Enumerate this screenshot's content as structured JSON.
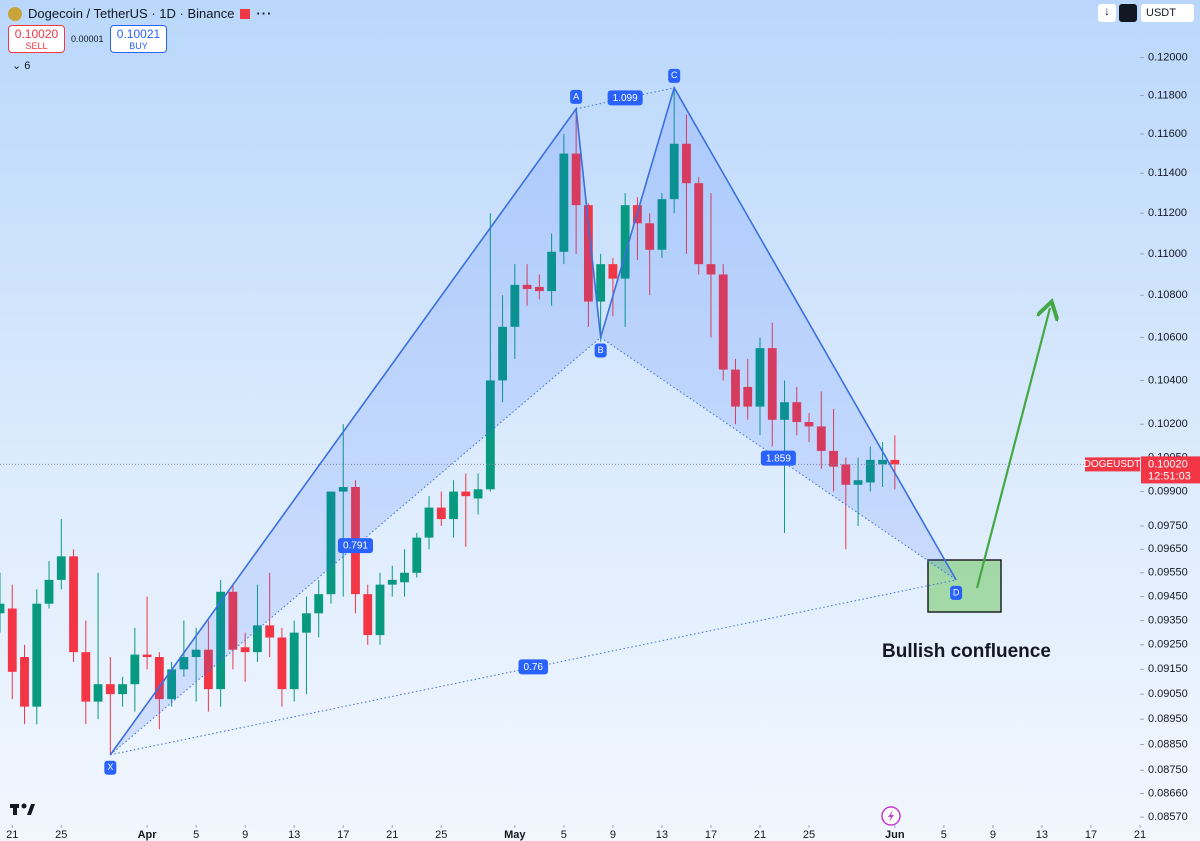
{
  "header": {
    "title": "Dogecoin / TetherUS · 1D · Binance",
    "sell_price": "0.10020",
    "sell": "SELL",
    "spread": "0.00001",
    "buy_price": "0.10021",
    "buy": "BUY",
    "indicators": "6",
    "currency": "USDT"
  },
  "chart_data": {
    "type": "candlestick",
    "log_scale": true,
    "colors": {
      "up": "#089981",
      "down": "#f23645",
      "pattern": "#3b6fe0"
    },
    "x": [
      "03-20",
      "03-21",
      "03-22",
      "03-23",
      "03-24",
      "03-25",
      "03-26",
      "03-27",
      "03-28",
      "03-29",
      "03-30",
      "03-31",
      "04-01",
      "04-02",
      "04-03",
      "04-04",
      "04-05",
      "04-06",
      "04-07",
      "04-08",
      "04-09",
      "04-10",
      "04-11",
      "04-12",
      "04-13",
      "04-14",
      "04-15",
      "04-16",
      "04-17",
      "04-18",
      "04-19",
      "04-20",
      "04-21",
      "04-22",
      "04-23",
      "04-24",
      "04-25",
      "04-26",
      "04-27",
      "04-28",
      "04-29",
      "04-30",
      "05-01",
      "05-02",
      "05-03",
      "05-04",
      "05-05",
      "05-06",
      "05-07",
      "05-08",
      "05-09",
      "05-10",
      "05-11",
      "05-12",
      "05-13",
      "05-14",
      "05-15",
      "05-16",
      "05-17",
      "05-18",
      "05-19",
      "05-20",
      "05-21",
      "05-22",
      "05-23",
      "05-24",
      "05-25",
      "05-26",
      "05-27",
      "05-28",
      "05-29",
      "05-30",
      "05-31",
      "06-01"
    ],
    "open": [
      0.0938,
      0.094,
      0.092,
      0.09,
      0.0942,
      0.0952,
      0.0962,
      0.0922,
      0.0902,
      0.0909,
      0.0905,
      0.0909,
      0.0921,
      0.092,
      0.0903,
      0.0915,
      0.092,
      0.0923,
      0.0907,
      0.0947,
      0.0924,
      0.0922,
      0.0933,
      0.0928,
      0.0907,
      0.093,
      0.0938,
      0.0946,
      0.099,
      0.0992,
      0.0946,
      0.0929,
      0.095,
      0.0951,
      0.0955,
      0.097,
      0.0983,
      0.0978,
      0.099,
      0.0987,
      0.0991,
      0.104,
      0.1065,
      0.1085,
      0.1084,
      0.1082,
      0.1101,
      0.115,
      0.1124,
      0.1077,
      0.1095,
      0.1088,
      0.1124,
      0.1115,
      0.1102,
      0.1127,
      0.1155,
      0.1135,
      0.1095,
      0.109,
      0.1045,
      0.1037,
      0.1028,
      0.1055,
      0.1022,
      0.103,
      0.1021,
      0.1019,
      0.1008,
      0.1002,
      0.0993,
      0.0994,
      0.1002,
      0.1004
    ],
    "high": [
      0.0955,
      0.095,
      0.0925,
      0.0948,
      0.096,
      0.0978,
      0.0965,
      0.0935,
      0.0955,
      0.092,
      0.0912,
      0.0932,
      0.0945,
      0.0922,
      0.0918,
      0.0935,
      0.0932,
      0.0935,
      0.0952,
      0.095,
      0.093,
      0.095,
      0.0955,
      0.0932,
      0.0935,
      0.0945,
      0.0952,
      0.099,
      0.102,
      0.0995,
      0.095,
      0.0955,
      0.0958,
      0.0965,
      0.0972,
      0.0988,
      0.099,
      0.0995,
      0.0998,
      0.0998,
      0.112,
      0.108,
      0.1095,
      0.1095,
      0.109,
      0.111,
      0.116,
      0.1172,
      0.1125,
      0.11,
      0.1098,
      0.113,
      0.1128,
      0.112,
      0.113,
      0.1183,
      0.117,
      0.1138,
      0.113,
      0.1095,
      0.105,
      0.105,
      0.106,
      0.1067,
      0.104,
      0.1037,
      0.1025,
      0.1035,
      0.1027,
      0.1005,
      0.1005,
      0.101,
      0.1012,
      0.1015
    ],
    "low": [
      0.093,
      0.0903,
      0.0893,
      0.0893,
      0.094,
      0.0948,
      0.0918,
      0.0893,
      0.0895,
      0.0881,
      0.09,
      0.0898,
      0.0915,
      0.0891,
      0.09,
      0.0912,
      0.0902,
      0.0898,
      0.09,
      0.0915,
      0.091,
      0.0918,
      0.092,
      0.09,
      0.0902,
      0.0905,
      0.0928,
      0.0942,
      0.0945,
      0.0938,
      0.0925,
      0.0925,
      0.0945,
      0.0945,
      0.0953,
      0.0965,
      0.0975,
      0.097,
      0.0966,
      0.098,
      0.099,
      0.103,
      0.105,
      0.1075,
      0.1078,
      0.1075,
      0.1095,
      0.11,
      0.1065,
      0.1058,
      0.107,
      0.1065,
      0.1097,
      0.108,
      0.1098,
      0.112,
      0.11,
      0.109,
      0.106,
      0.104,
      0.102,
      0.1022,
      0.1015,
      0.101,
      0.0972,
      0.1015,
      0.1012,
      0.1,
      0.099,
      0.0965,
      0.0975,
      0.099,
      0.0992,
      0.0991
    ],
    "close": [
      0.0942,
      0.0914,
      0.09,
      0.0942,
      0.0952,
      0.0962,
      0.0922,
      0.0902,
      0.0909,
      0.0905,
      0.0909,
      0.0921,
      0.092,
      0.0903,
      0.0915,
      0.092,
      0.0923,
      0.0907,
      0.0947,
      0.0923,
      0.0922,
      0.0933,
      0.0928,
      0.0907,
      0.093,
      0.0938,
      0.0946,
      0.099,
      0.0992,
      0.0946,
      0.0929,
      0.095,
      0.0952,
      0.0955,
      0.097,
      0.0983,
      0.0978,
      0.099,
      0.0988,
      0.0991,
      0.104,
      0.1065,
      0.1085,
      0.1083,
      0.1082,
      0.1101,
      0.115,
      0.1124,
      0.1077,
      0.1095,
      0.1088,
      0.1124,
      0.1115,
      0.1102,
      0.1127,
      0.1155,
      0.1135,
      0.1095,
      0.109,
      0.1045,
      0.1028,
      0.1028,
      0.1055,
      0.1022,
      0.103,
      0.1021,
      0.1019,
      0.1008,
      0.1001,
      0.0993,
      0.0995,
      0.1004,
      0.1004,
      0.1002
    ],
    "xlim": [
      "03-20",
      "06-21"
    ],
    "xticks": [
      {
        "value": "03-21",
        "label": "21"
      },
      {
        "value": "03-25",
        "label": "25"
      },
      {
        "value": "04-01",
        "label": "Apr"
      },
      {
        "value": "04-05",
        "label": "5"
      },
      {
        "value": "04-09",
        "label": "9"
      },
      {
        "value": "04-13",
        "label": "13"
      },
      {
        "value": "04-17",
        "label": "17"
      },
      {
        "value": "04-21",
        "label": "21"
      },
      {
        "value": "04-25",
        "label": "25"
      },
      {
        "value": "05-01",
        "label": "May"
      },
      {
        "value": "05-05",
        "label": "5"
      },
      {
        "value": "05-09",
        "label": "9"
      },
      {
        "value": "05-13",
        "label": "13"
      },
      {
        "value": "05-17",
        "label": "17"
      },
      {
        "value": "05-21",
        "label": "21"
      },
      {
        "value": "05-25",
        "label": "25"
      },
      {
        "value": "06-01",
        "label": "Jun"
      },
      {
        "value": "06-05",
        "label": "5"
      },
      {
        "value": "06-09",
        "label": "9"
      },
      {
        "value": "06-13",
        "label": "13"
      },
      {
        "value": "06-17",
        "label": "17"
      },
      {
        "value": "06-21",
        "label": "21"
      }
    ],
    "ylim": [
      0.0854,
      0.1231
    ],
    "yticks": [
      {
        "value": 0.12,
        "label": "0.12000"
      },
      {
        "value": 0.118,
        "label": "0.11800"
      },
      {
        "value": 0.116,
        "label": "0.11600"
      },
      {
        "value": 0.114,
        "label": "0.11400"
      },
      {
        "value": 0.112,
        "label": "0.11200"
      },
      {
        "value": 0.11,
        "label": "0.11000"
      },
      {
        "value": 0.108,
        "label": "0.10800"
      },
      {
        "value": 0.106,
        "label": "0.10600"
      },
      {
        "value": 0.104,
        "label": "0.10400"
      },
      {
        "value": 0.102,
        "label": "0.10200"
      },
      {
        "value": 0.1005,
        "label": "0.10050"
      },
      {
        "value": 0.099,
        "label": "0.09900"
      },
      {
        "value": 0.0975,
        "label": "0.09750"
      },
      {
        "value": 0.0965,
        "label": "0.09650"
      },
      {
        "value": 0.0955,
        "label": "0.09550"
      },
      {
        "value": 0.0945,
        "label": "0.09450"
      },
      {
        "value": 0.0935,
        "label": "0.09350"
      },
      {
        "value": 0.0925,
        "label": "0.09250"
      },
      {
        "value": 0.0915,
        "label": "0.09150"
      },
      {
        "value": 0.0905,
        "label": "0.09050"
      },
      {
        "value": 0.0895,
        "label": "0.08950"
      },
      {
        "value": 0.0885,
        "label": "0.08850"
      },
      {
        "value": 0.0875,
        "label": "0.08750"
      },
      {
        "value": 0.0866,
        "label": "0.08660"
      },
      {
        "value": 0.0857,
        "label": "0.08570"
      }
    ],
    "pattern": {
      "points": [
        {
          "label": "X",
          "x": "03-29",
          "value": 0.0881
        },
        {
          "label": "A",
          "x": "05-06",
          "value": 0.1173
        },
        {
          "label": "B",
          "x": "05-08",
          "value": 0.106
        },
        {
          "label": "C",
          "x": "05-14",
          "value": 0.1184
        },
        {
          "label": "D",
          "x": "06-06",
          "value": 0.0952
        }
      ],
      "ratios": {
        "XB": 0.791,
        "AC": 1.099,
        "BD": 1.859,
        "XD": 0.76
      }
    },
    "price_line": {
      "symbol": "DOGEUSDT",
      "value": 0.1002,
      "label": "0.10020",
      "countdown": "12:51:03"
    },
    "annotation": "Bullish confluence"
  }
}
